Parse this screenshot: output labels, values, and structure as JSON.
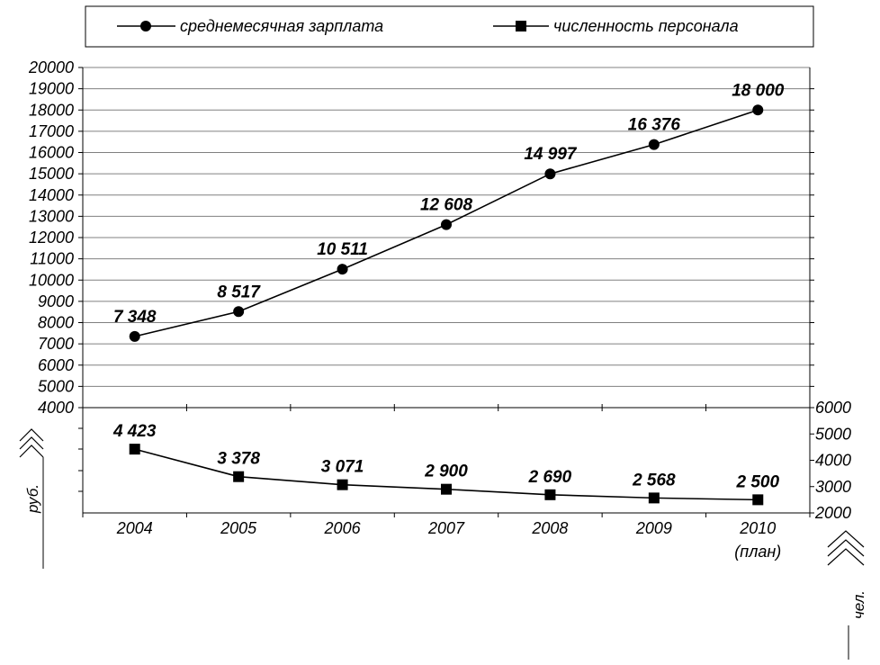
{
  "chart_data": {
    "type": "line",
    "categories": [
      "2004",
      "2005",
      "2006",
      "2007",
      "2008",
      "2009",
      "2010"
    ],
    "category_sublabels": [
      "",
      "",
      "",
      "",
      "",
      "",
      "(план)"
    ],
    "series": [
      {
        "name": "среднемесячная зарплата",
        "marker": "circle",
        "axis": "left",
        "values": [
          7348,
          8517,
          10511,
          12608,
          14997,
          16376,
          18000
        ],
        "labels": [
          "7 348",
          "8 517",
          "10 511",
          "12 608",
          "14 997",
          "16 376",
          "18 000"
        ]
      },
      {
        "name": "численность персонала",
        "marker": "square",
        "axis": "right",
        "values": [
          4423,
          3378,
          3071,
          2900,
          2690,
          2568,
          2500
        ],
        "labels": [
          "4 423",
          "3 378",
          "3 071",
          "2 900",
          "2 690",
          "2 568",
          "2 500"
        ]
      }
    ],
    "left_axis": {
      "ylim": [
        4000,
        20000
      ],
      "ticks": [
        20000,
        19000,
        18000,
        17000,
        16000,
        15000,
        14000,
        13000,
        12000,
        11000,
        10000,
        9000,
        8000,
        7000,
        6000,
        5000,
        4000
      ],
      "unit": "руб."
    },
    "right_axis": {
      "ylim": [
        2000,
        6000
      ],
      "ticks": [
        6000,
        5000,
        4000,
        3000,
        2000
      ],
      "unit": "чел."
    },
    "grid": true,
    "legend_position": "top"
  }
}
